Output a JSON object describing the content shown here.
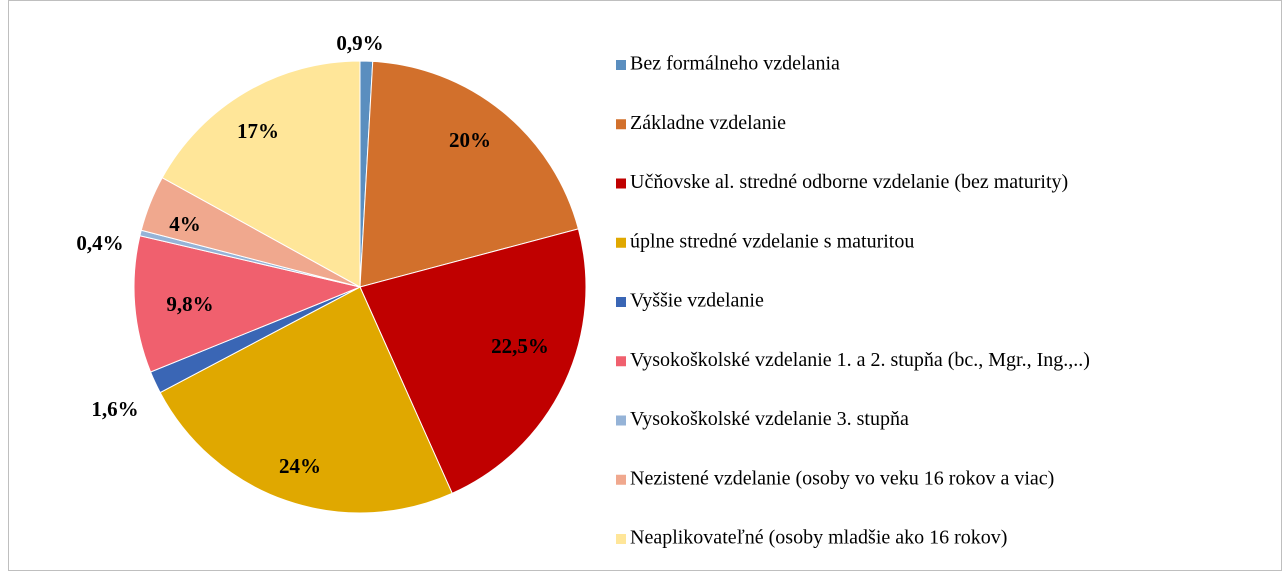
{
  "chart_data": {
    "type": "pie",
    "categories": [
      "Bez formálneho vzdelania",
      "Základne vzdelanie",
      "Učňovske al. stredné odborne vzdelanie (bez maturity)",
      "úplne stredné vzdelanie s maturitou",
      "Vyššie vzdelanie",
      "Vysokoškolské vzdelanie 1. a 2. stupňa (bc., Mgr., Ing.,..)",
      "Vysokoškolské vzdelanie 3. stupňa",
      "Nezistené vzdelanie (osoby vo veku 16 rokov a viac)",
      "Neaplikovateľné (osoby  mladšie ako 16 rokov)"
    ],
    "values": [
      0.9,
      20,
      22.5,
      24,
      1.6,
      9.8,
      0.4,
      4,
      17
    ],
    "value_labels": [
      "0,9%",
      "20%",
      "22,5%",
      "24%",
      "1,6%",
      "9,8%",
      "0,4%",
      "4%",
      "17%"
    ],
    "colors": [
      "#5a8ebf",
      "#d2702c",
      "#c00000",
      "#e0a800",
      "#3a66b5",
      "#f0606e",
      "#95b3d7",
      "#f0a88e",
      "#ffe699"
    ],
    "legend": "right"
  }
}
